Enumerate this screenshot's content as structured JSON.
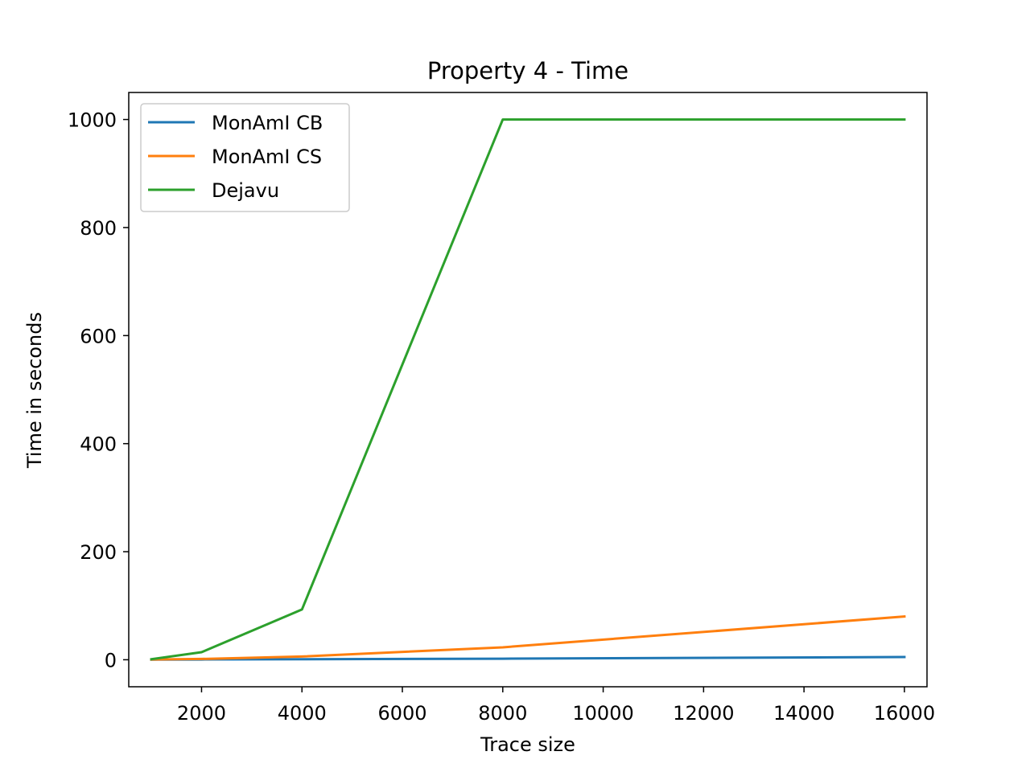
{
  "chart_data": {
    "type": "line",
    "title": "Property 4 - Time",
    "xlabel": "Trace size",
    "ylabel": "Time in seconds",
    "x": [
      1000,
      2000,
      4000,
      8000,
      16000
    ],
    "xlim": [
      550,
      16450
    ],
    "ylim": [
      -50,
      1050
    ],
    "xticks": [
      2000,
      4000,
      6000,
      8000,
      10000,
      12000,
      14000,
      16000
    ],
    "yticks": [
      0,
      200,
      400,
      600,
      800,
      1000
    ],
    "grid": false,
    "legend_position": "top-left",
    "series": [
      {
        "name": "MonAmI CB",
        "color": "#1f77b4",
        "values": [
          0.2,
          0.5,
          1.0,
          2.0,
          5.0
        ]
      },
      {
        "name": "MonAmI CS",
        "color": "#ff7f0e",
        "values": [
          0.5,
          1.5,
          6.0,
          23.0,
          80.0
        ]
      },
      {
        "name": "Dejavu",
        "color": "#2ca02c",
        "values": [
          1.0,
          14.0,
          93.0,
          1000.0,
          1000.0
        ]
      }
    ]
  }
}
